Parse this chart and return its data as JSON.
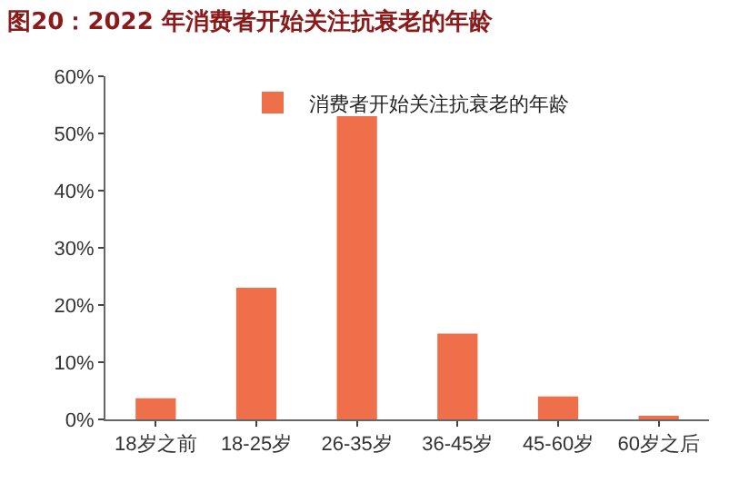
{
  "chart_data": {
    "type": "bar",
    "title": "图20：2022 年消费者开始关注抗衰老的年龄",
    "categories": [
      "18岁之前",
      "18-25岁",
      "26-35岁",
      "36-45岁",
      "45-60岁",
      "60岁之后"
    ],
    "series": [
      {
        "name": "消费者开始关注抗衰老的年龄",
        "color": "#ee6f4a",
        "values": [
          3.7,
          23,
          53,
          15,
          4,
          0.4
        ]
      }
    ],
    "ylim": [
      0,
      60
    ],
    "yticks": [
      {
        "value": 0,
        "label": "0%"
      },
      {
        "value": 10,
        "label": "10%"
      },
      {
        "value": 20,
        "label": "20%"
      },
      {
        "value": 30,
        "label": "30%"
      },
      {
        "value": 40,
        "label": "40%"
      },
      {
        "value": 50,
        "label": "50%"
      },
      {
        "value": 60,
        "label": "60%"
      }
    ],
    "grid": false,
    "legend": "top"
  }
}
